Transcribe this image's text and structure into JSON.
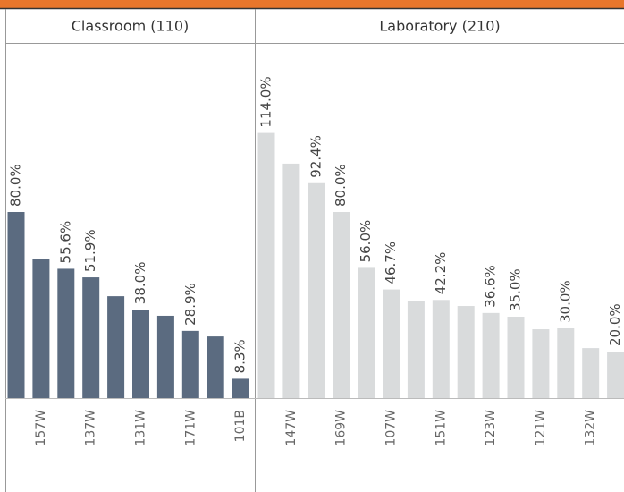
{
  "chart_data": [
    {
      "type": "bar",
      "title": "Classroom (110)",
      "color": "#5b6b80",
      "categories": [
        null,
        "157W",
        null,
        "137W",
        null,
        "131W",
        null,
        "171W",
        null,
        "101B"
      ],
      "values": [
        80.0,
        60.0,
        55.6,
        51.9,
        43.8,
        38.0,
        35.4,
        28.9,
        26.5,
        8.3
      ],
      "value_labels": [
        "80.0%",
        null,
        "55.6%",
        "51.9%",
        null,
        "38.0%",
        null,
        "28.9%",
        null,
        "8.3%"
      ]
    },
    {
      "type": "bar",
      "title": "Laboratory (210)",
      "color": "#d9dbdc",
      "categories": [
        null,
        "147W",
        null,
        "169W",
        null,
        "107W",
        null,
        "151W",
        null,
        "123W",
        null,
        "121W",
        null,
        "132W",
        null
      ],
      "values": [
        114.0,
        100.8,
        92.4,
        80.0,
        56.0,
        46.7,
        41.9,
        42.2,
        39.6,
        36.6,
        35.0,
        29.6,
        30.0,
        21.5,
        20.0
      ],
      "value_labels": [
        "114.0%",
        null,
        "92.4%",
        "80.0%",
        "56.0%",
        "46.7%",
        null,
        "42.2%",
        null,
        "36.6%",
        "35.0%",
        null,
        "30.0%",
        null,
        "20.0%"
      ]
    }
  ]
}
